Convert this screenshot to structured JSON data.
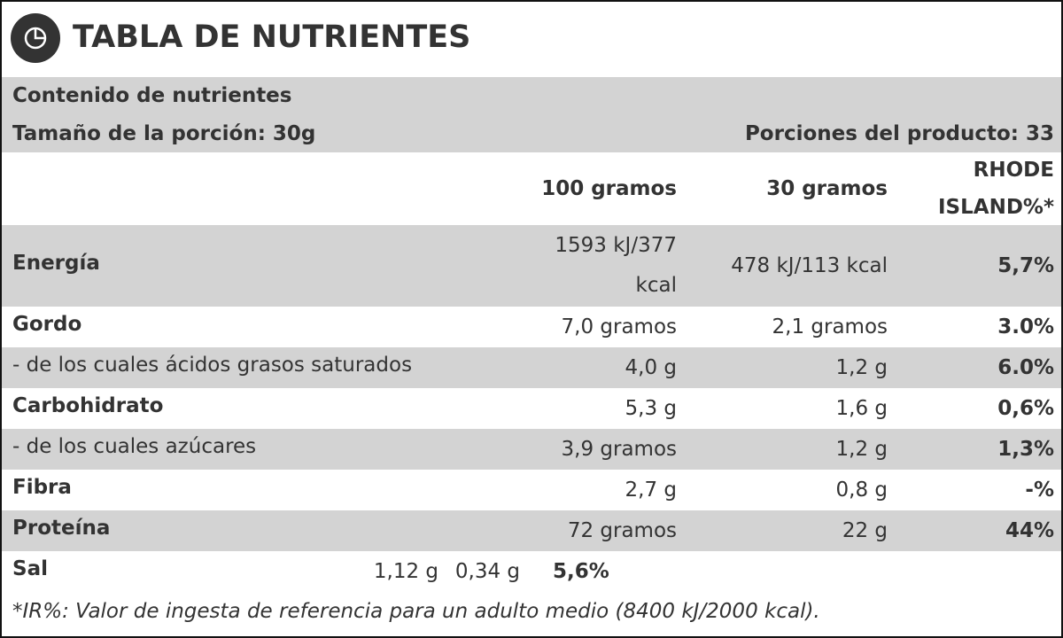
{
  "header": {
    "title": "TABLA DE NUTRIENTES"
  },
  "summary": {
    "heading": "Contenido de nutrientes",
    "serving_size": "Tamaño de la porción: 30g",
    "servings": "Porciones del producto: 33"
  },
  "table": {
    "columns": [
      "100 gramos",
      "30 gramos",
      "RHODE ISLAND%*"
    ],
    "rows": [
      {
        "label": "Energía",
        "values": [
          "1593 kJ/377 kcal",
          "478 kJ/113 kcal",
          "5,7%"
        ]
      },
      {
        "label": "Gordo",
        "values": [
          "7,0 gramos",
          "2,1 gramos",
          "3.0%"
        ]
      },
      {
        "label": "- de los cuales ácidos grasos saturados",
        "values": [
          "4,0 g",
          "1,2 g",
          "6.0%"
        ]
      },
      {
        "label": "Carbohidrato",
        "values": [
          "5,3 g",
          "1,6 g",
          "0,6%"
        ]
      },
      {
        "label": "- de los cuales azúcares",
        "values": [
          "3,9 gramos",
          "1,2 g",
          "1,3%"
        ]
      },
      {
        "label": "Fibra",
        "values": [
          "2,7 g",
          "0,8 g",
          "-%"
        ]
      },
      {
        "label": "Proteína",
        "values": [
          "72 gramos",
          "22 g",
          "44%"
        ]
      },
      {
        "label": "Sal",
        "values": [
          "1,12 g",
          "0,34 g",
          "5,6%"
        ]
      }
    ]
  },
  "footnote": "*IR%: Valor de ingesta de referencia para un adulto medio (8400 kJ/2000 kcal)."
}
